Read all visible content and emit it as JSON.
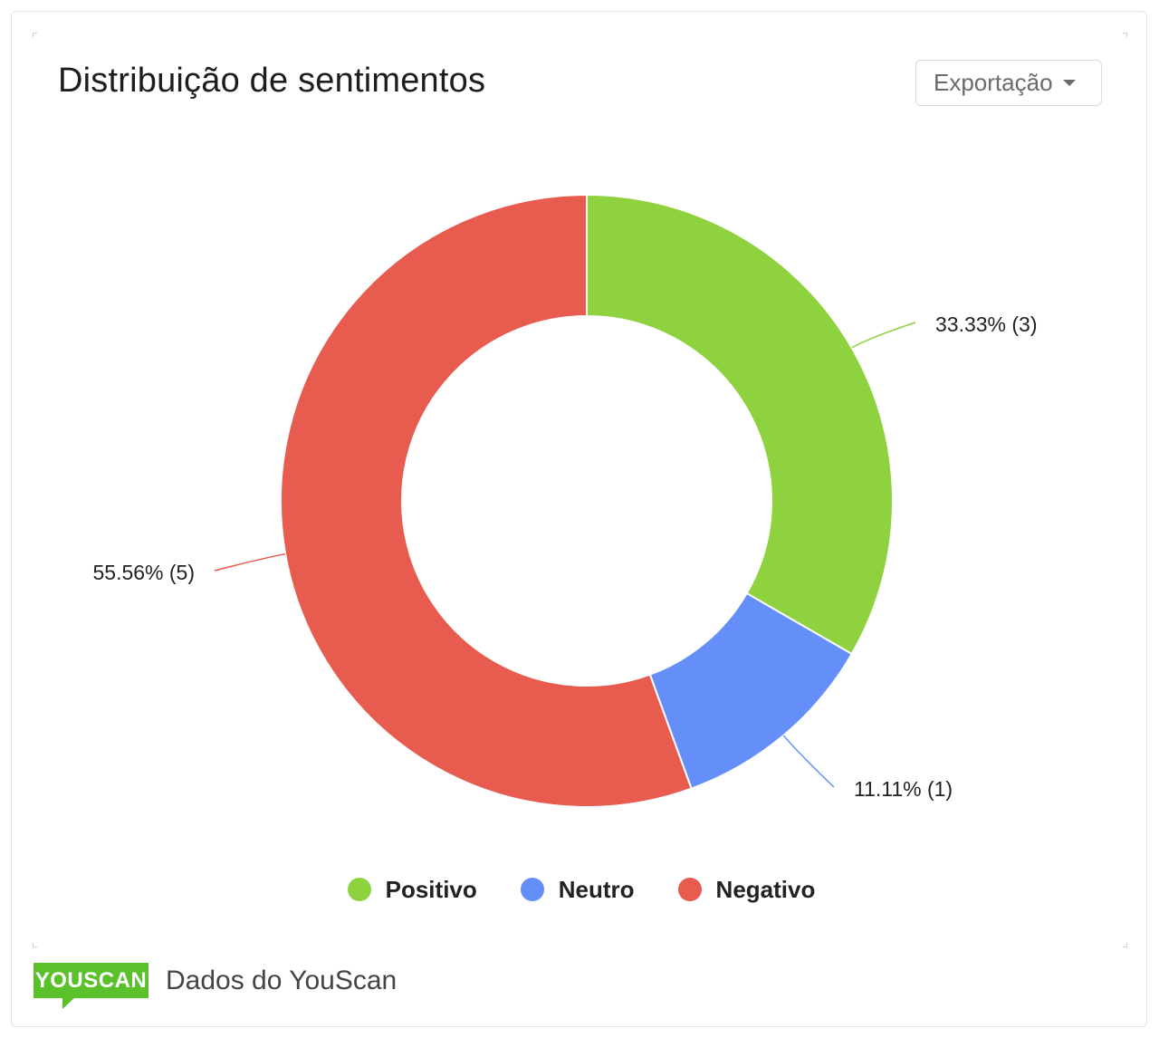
{
  "header": {
    "title": "Distribuição de sentimentos",
    "export_label": "Exportação"
  },
  "chart_data": {
    "type": "pie",
    "donut": true,
    "categories": [
      "Positivo",
      "Neutro",
      "Negativo"
    ],
    "values": [
      3,
      1,
      5
    ],
    "percentages": [
      33.33,
      11.11,
      55.56
    ],
    "labels": [
      "33.33% (3)",
      "11.11% (1)",
      "55.56% (5)"
    ],
    "colors": [
      "#8ed23f",
      "#648ff9",
      "#e85b4f"
    ],
    "legend_position": "bottom",
    "title": ""
  },
  "legend": {
    "items": [
      {
        "label": "Positivo",
        "color": "#8ed23f"
      },
      {
        "label": "Neutro",
        "color": "#648ff9"
      },
      {
        "label": "Negativo",
        "color": "#e85b4f"
      }
    ]
  },
  "footer": {
    "logo_text": "YOUSCAN",
    "text": "Dados do YouScan"
  }
}
